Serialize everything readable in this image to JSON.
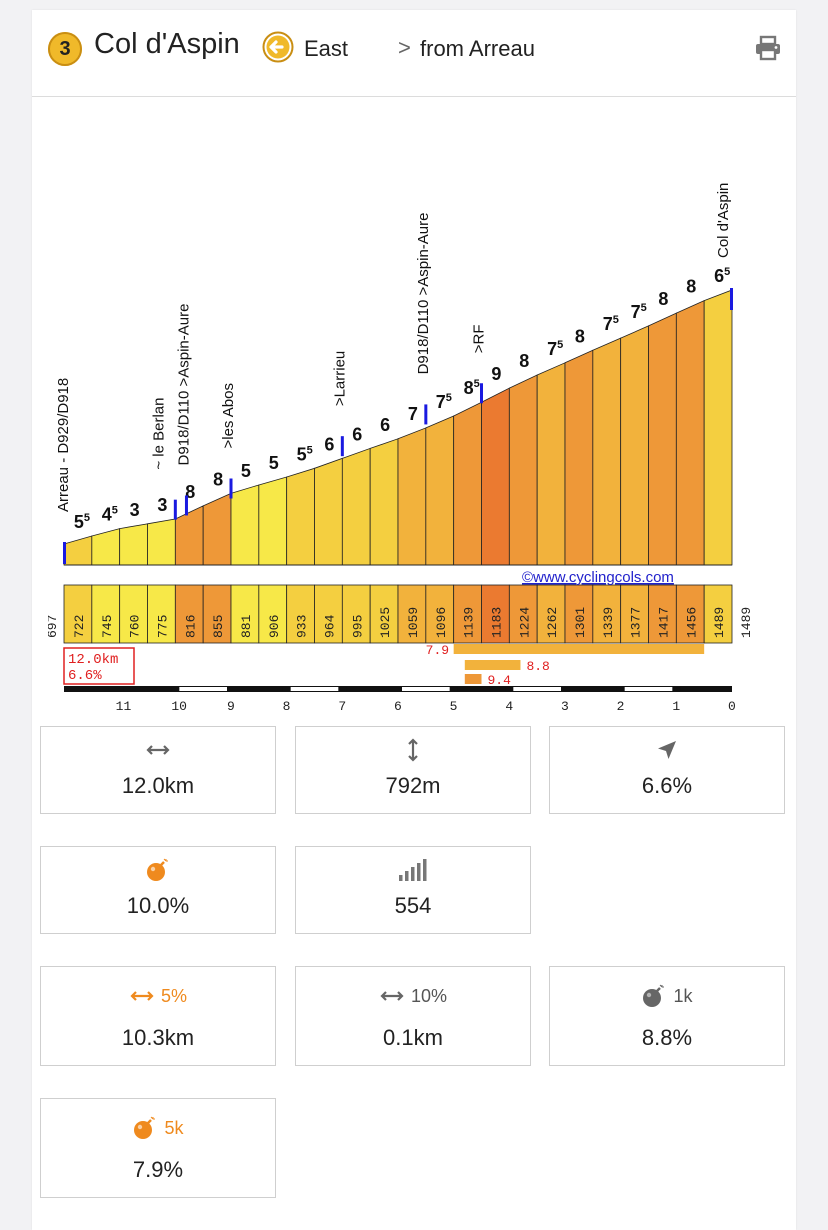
{
  "header": {
    "category": "3",
    "col_name": "Col d'Aspin",
    "direction": "East",
    "from": "from Arreau",
    "chevron": ">"
  },
  "colors": {
    "badge": "#f0b92a",
    "accent_orange": "#ef8a1e",
    "grad_5": "#f7e848",
    "grad_6": "#f4cf40",
    "grad_7": "#f2b23c",
    "grad_8": "#ee9838",
    "grad_9": "#eb7a30"
  },
  "chart_data": {
    "type": "area",
    "credit": "©www.cyclingcols.com",
    "summary_box": [
      "12.0km",
      "6.6%"
    ],
    "km_axis": [
      "11",
      "10",
      "9",
      "8",
      "7",
      "6",
      "5",
      "4",
      "3",
      "2",
      "1",
      "0"
    ],
    "start_altitude": "697",
    "end_altitude": "1489",
    "segments": [
      {
        "grad": "55",
        "alt": "722"
      },
      {
        "grad": "45",
        "alt": "745"
      },
      {
        "grad": "3",
        "alt": "760"
      },
      {
        "grad": "3",
        "alt": "775"
      },
      {
        "grad": "8",
        "alt": "816"
      },
      {
        "grad": "8",
        "alt": "855"
      },
      {
        "grad": "5",
        "alt": "881"
      },
      {
        "grad": "5",
        "alt": "906"
      },
      {
        "grad": "55",
        "alt": "933"
      },
      {
        "grad": "6",
        "alt": "964"
      },
      {
        "grad": "6",
        "alt": "995"
      },
      {
        "grad": "6",
        "alt": "1025"
      },
      {
        "grad": "7",
        "alt": "1059"
      },
      {
        "grad": "75",
        "alt": "1096"
      },
      {
        "grad": "85",
        "alt": "1139"
      },
      {
        "grad": "9",
        "alt": "1183"
      },
      {
        "grad": "8",
        "alt": "1224"
      },
      {
        "grad": "75",
        "alt": "1262"
      },
      {
        "grad": "8",
        "alt": "1301"
      },
      {
        "grad": "75",
        "alt": "1339"
      },
      {
        "grad": "75",
        "alt": "1377"
      },
      {
        "grad": "8",
        "alt": "1417"
      },
      {
        "grad": "8",
        "alt": "1456"
      },
      {
        "grad": "65",
        "alt": "1489"
      }
    ],
    "waypoints": [
      {
        "label": "Arreau - D929/D918",
        "km": 12.0
      },
      {
        "label": "~ le Berlan",
        "km": 10.0
      },
      {
        "label": "D918/D110 >Aspin-Aure",
        "km": 9.8
      },
      {
        "label": ">les Abos",
        "km": 9.0
      },
      {
        "label": ">Larrieu",
        "km": 7.0
      },
      {
        "label": "D918/D110 >Aspin-Aure",
        "km": 5.5
      },
      {
        "label": ">RF",
        "km": 4.5
      },
      {
        "label": "Col d'Aspin",
        "km": 0.0
      }
    ],
    "steepest_bars": [
      {
        "value": "7.9",
        "from_km": 5.0,
        "to_km": 0.5
      },
      {
        "value": "8.8",
        "from_km": 4.8,
        "to_km": 3.8
      },
      {
        "value": "9.4",
        "from_km": 4.8,
        "to_km": 4.5
      }
    ]
  },
  "stats": {
    "distance": "12.0km",
    "height_gain": "792m",
    "avg_gradient": "6.6%",
    "max_gradient": "10.0%",
    "difficulty": "554",
    "dist_5pct_label": "5%",
    "dist_5pct": "10.3km",
    "dist_10pct_label": "10%",
    "dist_10pct": "0.1km",
    "steepest_1k_label": "1k",
    "steepest_1k": "8.8%",
    "steepest_5k_label": "5k",
    "steepest_5k": "7.9%"
  },
  "icons": {
    "direction": "arrow-left-circle-icon",
    "print": "printer-icon",
    "distance": "horizontal-arrows-icon",
    "height": "vertical-arrows-icon",
    "gradient": "navigation-arrow-icon",
    "max": "bomb-icon",
    "difficulty": "signal-bars-icon"
  }
}
